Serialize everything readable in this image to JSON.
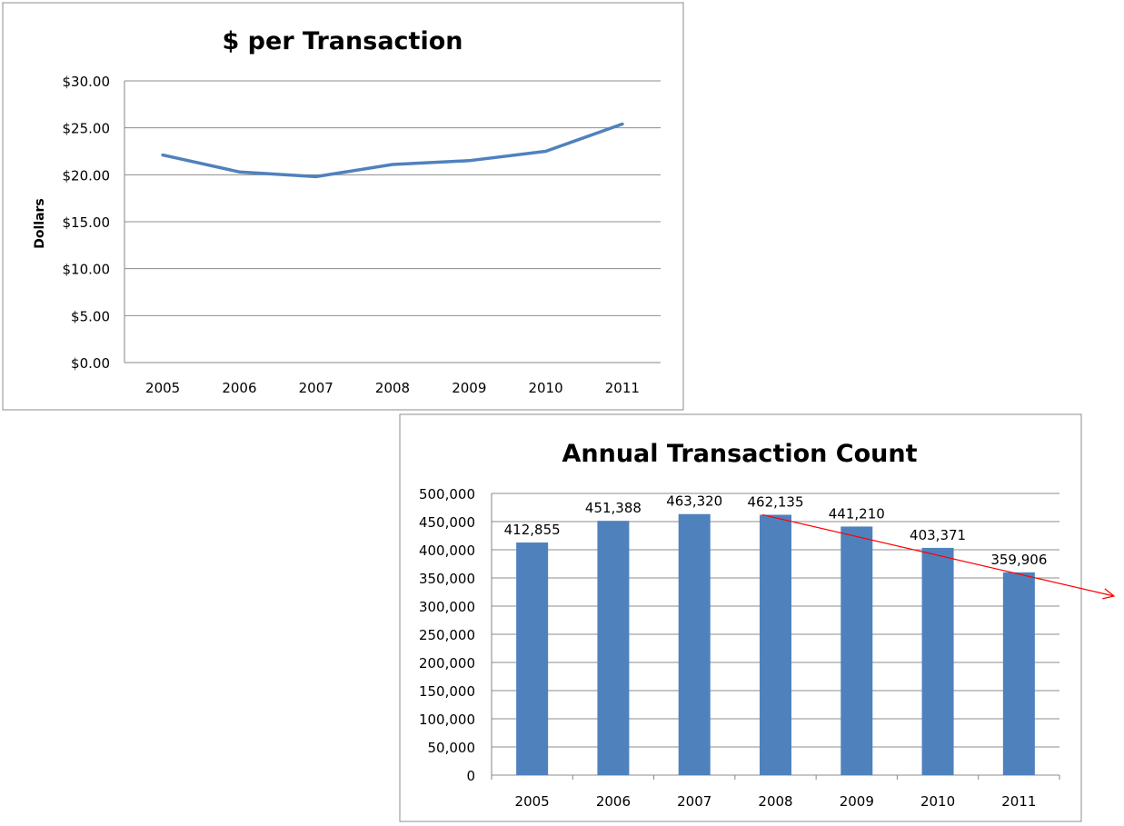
{
  "chart_data": [
    {
      "type": "line",
      "title": "$ per Transaction",
      "xlabel": "",
      "ylabel": "Dollars",
      "categories": [
        "2005",
        "2006",
        "2007",
        "2008",
        "2009",
        "2010",
        "2011"
      ],
      "values": [
        22.1,
        20.3,
        19.8,
        21.1,
        21.5,
        22.5,
        25.4
      ],
      "ylim": [
        0,
        30
      ],
      "yticks": [
        "$0.00",
        "$5.00",
        "$10.00",
        "$15.00",
        "$20.00",
        "$25.00",
        "$30.00"
      ],
      "series_color": "#4f81bd",
      "grid": true,
      "legend": "none"
    },
    {
      "type": "bar",
      "title": "Annual Transaction Count",
      "xlabel": "",
      "ylabel": "",
      "categories": [
        "2005",
        "2006",
        "2007",
        "2008",
        "2009",
        "2010",
        "2011"
      ],
      "values": [
        412855,
        451388,
        463320,
        462135,
        441210,
        403371,
        359906
      ],
      "data_labels": [
        "412,855",
        "451,388",
        "463,320",
        "462,135",
        "441,210",
        "403,371",
        "359,906"
      ],
      "ylim": [
        0,
        500000
      ],
      "yticks": [
        "0",
        "50,000",
        "100,000",
        "150,000",
        "200,000",
        "250,000",
        "300,000",
        "350,000",
        "400,000",
        "450,000",
        "500,000"
      ],
      "bar_color": "#4f81bd",
      "grid": true,
      "legend": "none",
      "annotation": {
        "type": "trend-arrow",
        "from_category": "2008",
        "from_value": 462135,
        "color": "#ff0000"
      }
    }
  ]
}
